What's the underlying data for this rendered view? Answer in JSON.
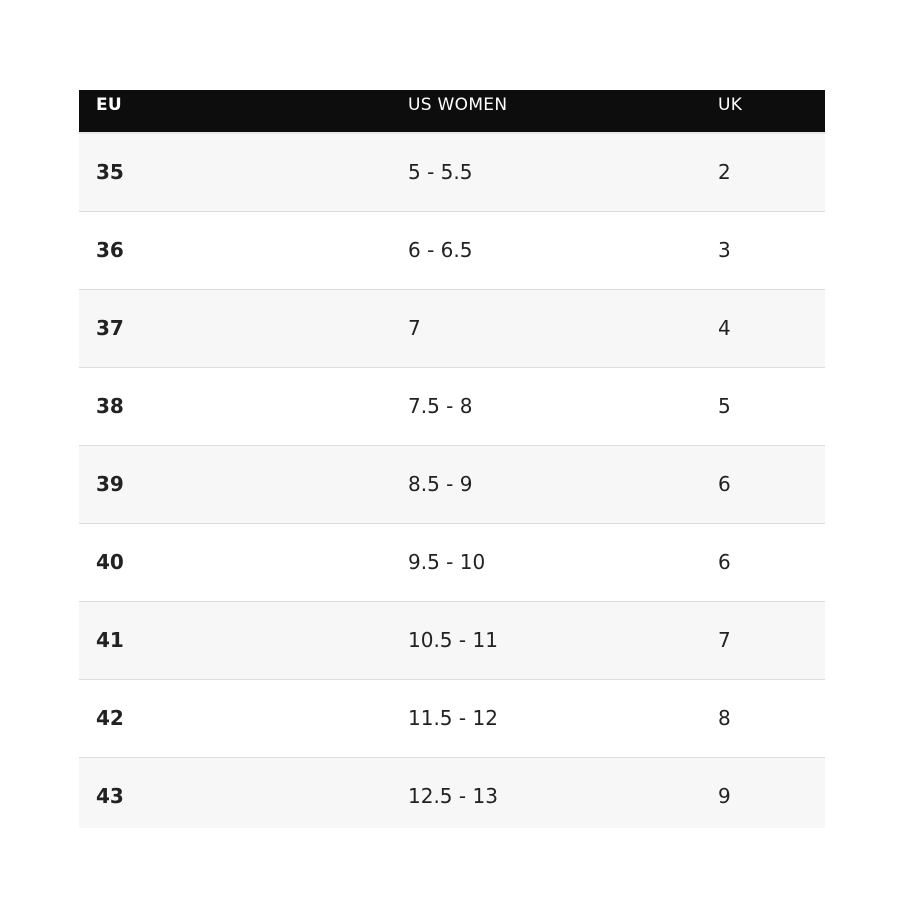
{
  "header": {
    "eu": "EU",
    "us_women": "US WOMEN",
    "uk": "UK"
  },
  "rows": [
    {
      "eu": "35",
      "us": "5 - 5.5",
      "uk": "2"
    },
    {
      "eu": "36",
      "us": "6 - 6.5",
      "uk": "3"
    },
    {
      "eu": "37",
      "us": "7",
      "uk": "4"
    },
    {
      "eu": "38",
      "us": "7.5 - 8",
      "uk": "5"
    },
    {
      "eu": "39",
      "us": "8.5 - 9",
      "uk": "6"
    },
    {
      "eu": "40",
      "us": "9.5 - 10",
      "uk": "6"
    },
    {
      "eu": "41",
      "us": "10.5 - 11",
      "uk": "7"
    },
    {
      "eu": "42",
      "us": "11.5 - 12",
      "uk": "8"
    },
    {
      "eu": "43",
      "us": "12.5 - 13",
      "uk": "9"
    }
  ]
}
